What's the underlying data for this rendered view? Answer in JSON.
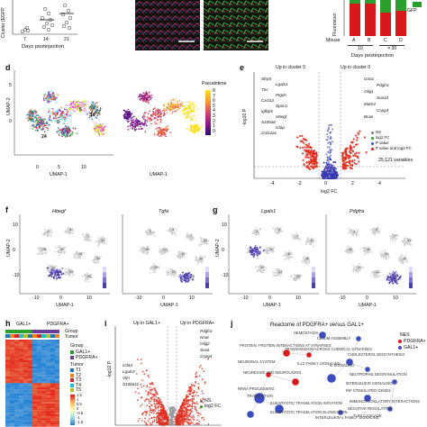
{
  "panel_letters": {
    "d": "d",
    "e": "e",
    "f": "f",
    "g": "g",
    "h": "h",
    "i": "i",
    "j": "j"
  },
  "top_a": {
    "ylabel_partial": "Cluster (EGFP",
    "ticks": [
      "7",
      "14",
      "21"
    ],
    "xlabel": "Days postinjection"
  },
  "top_c": {
    "ylabel_partial": "Fluorescen",
    "legend": "GFP",
    "mouse_label": "Mouse",
    "mice": [
      "A",
      "B",
      "C",
      "D"
    ],
    "groups": [
      "10",
      "> 30"
    ],
    "xlabel": "Days postinjection",
    "chart_data": {
      "type": "bar",
      "categories": [
        "A",
        "B",
        "C",
        "D"
      ],
      "series": [
        {
          "name": "GFP",
          "values": [
            0.1,
            0.1,
            0.35,
            0.3
          ]
        }
      ]
    }
  },
  "panel_d": {
    "xlabel1": "UMAP-1",
    "xlabel2": "UMAP-1",
    "ylabel": "UMAP-2",
    "ticks_x": [
      "0",
      "5",
      "10"
    ],
    "ticks_y": [
      "5",
      "0"
    ],
    "cluster_labels": [
      "0",
      "5",
      "10",
      "24"
    ],
    "legend_title": "Pseudotime",
    "legend_ticks": [
      "8",
      "7",
      "6",
      "5",
      "4",
      "3",
      "2",
      "1",
      "0"
    ]
  },
  "panel_e": {
    "up_left": "Up in cluster 5",
    "up_right": "Up in cluster 0",
    "ylabel": "-log10 P",
    "xlabel": "log2 FC",
    "xticks": [
      "-4",
      "-2",
      "0",
      "2",
      "4"
    ],
    "variables": "25,121 variables",
    "legend": [
      "NS",
      "log2 FC",
      "P value",
      "P value and log2 FC"
    ],
    "genes_left": [
      "Sfrp5",
      "Lgals1",
      "Tnc",
      "Ptgds",
      "Cxcl12",
      "Spon1",
      "Igfbp5",
      "Hbegf",
      "S100a6",
      "Gfap",
      "Col12a1"
    ],
    "genes_right": [
      "Gria1",
      "Pdgfra",
      "Olig1",
      "Sox10",
      "Matn4",
      "Cspg4",
      "Bcan"
    ]
  },
  "panel_f": {
    "gene1": "Hbegf",
    "gene2": "Tgfa",
    "ylabel": "UMAP-2",
    "xlabel": "UMAP-1",
    "ticks_x": [
      "-10",
      "0",
      "10"
    ],
    "ticks_y": [
      "10",
      "0",
      "-10"
    ]
  },
  "panel_g": {
    "gene1": "Lgals1",
    "gene2": "Pdgfra",
    "ylabel": "UMAP-2",
    "xlabel": "UMAP-1",
    "ticks_x": [
      "-10",
      "0",
      "10"
    ],
    "ticks_y": [
      "10",
      "0",
      "-10"
    ]
  },
  "panel_h": {
    "col_groups": [
      "GAL1+",
      "PDGFRA+"
    ],
    "row_labels": [
      "Group",
      "Tumor"
    ],
    "legend_group_title": "Group",
    "legend_group": [
      "GAL1+",
      "PDGFRA+"
    ],
    "legend_tumor_title": "Tumor",
    "legend_tumor": [
      "T1",
      "T2",
      "T3",
      "T4",
      "T5"
    ],
    "scale": [
      "1.5",
      "1",
      "0.5",
      "0",
      "-0.5",
      "-1",
      "-1.5"
    ]
  },
  "panel_i": {
    "up_left": "Up in GAL1+",
    "up_right": "Up in PDGFRA+",
    "ylabel": "-log10 P",
    "genes_left": [
      "Cd44",
      "Lgals3",
      "Vim",
      "S100a11"
    ],
    "genes_right": [
      "Pdgfra",
      "Nnat",
      "Olig2",
      "Sox6",
      "Cspg4"
    ],
    "legend": [
      "NS",
      "log2 FC"
    ]
  },
  "panel_j": {
    "title": "Reactome of PDGFRA+ versus GAL1+",
    "nes_title": "NES",
    "nes_items": [
      "PDGFRA+",
      "GAL1+"
    ],
    "terms": [
      "HEMOSTASIS",
      "CILIUM ASSEMBLY",
      "PROTEIN, PROTEIN INTERACTIONS AT SYNAPSES",
      "TRANSMISSION ACROSS CHEMICAL SYNAPSES",
      "CHOLESTEROL BIOSYNTHESIS",
      "NEURONAL SYSTEM",
      "NEUREXINS AND NEUROLIGINS",
      "IL12 FAMILY SIGNALING",
      "IL SIGNALING",
      "NEUTROPHIL DEGRANULATION",
      "INTERLEUKIN SIGNALING",
      "INF STIMULATED GENES",
      "RRNA PROCESSING",
      "TRANSLATION",
      "EUKARYOTIC TRANSLATION INITIATION",
      "EUKARYOTIC TRANSLATION ELONGATION",
      "IMMUNOREGULATORY INTERACTIONS",
      "NEGATIVE REGULATION",
      "TLR4 CASCADE",
      "INTERLEUKIN-1 FAMILY SIGNALING"
    ]
  },
  "colors": {
    "red": "#d7191c",
    "blue": "#3b4cc0",
    "green": "#2ca02c",
    "grey": "#9a9a9a",
    "purple": "#6a3d9a",
    "orange": "#f08030"
  }
}
